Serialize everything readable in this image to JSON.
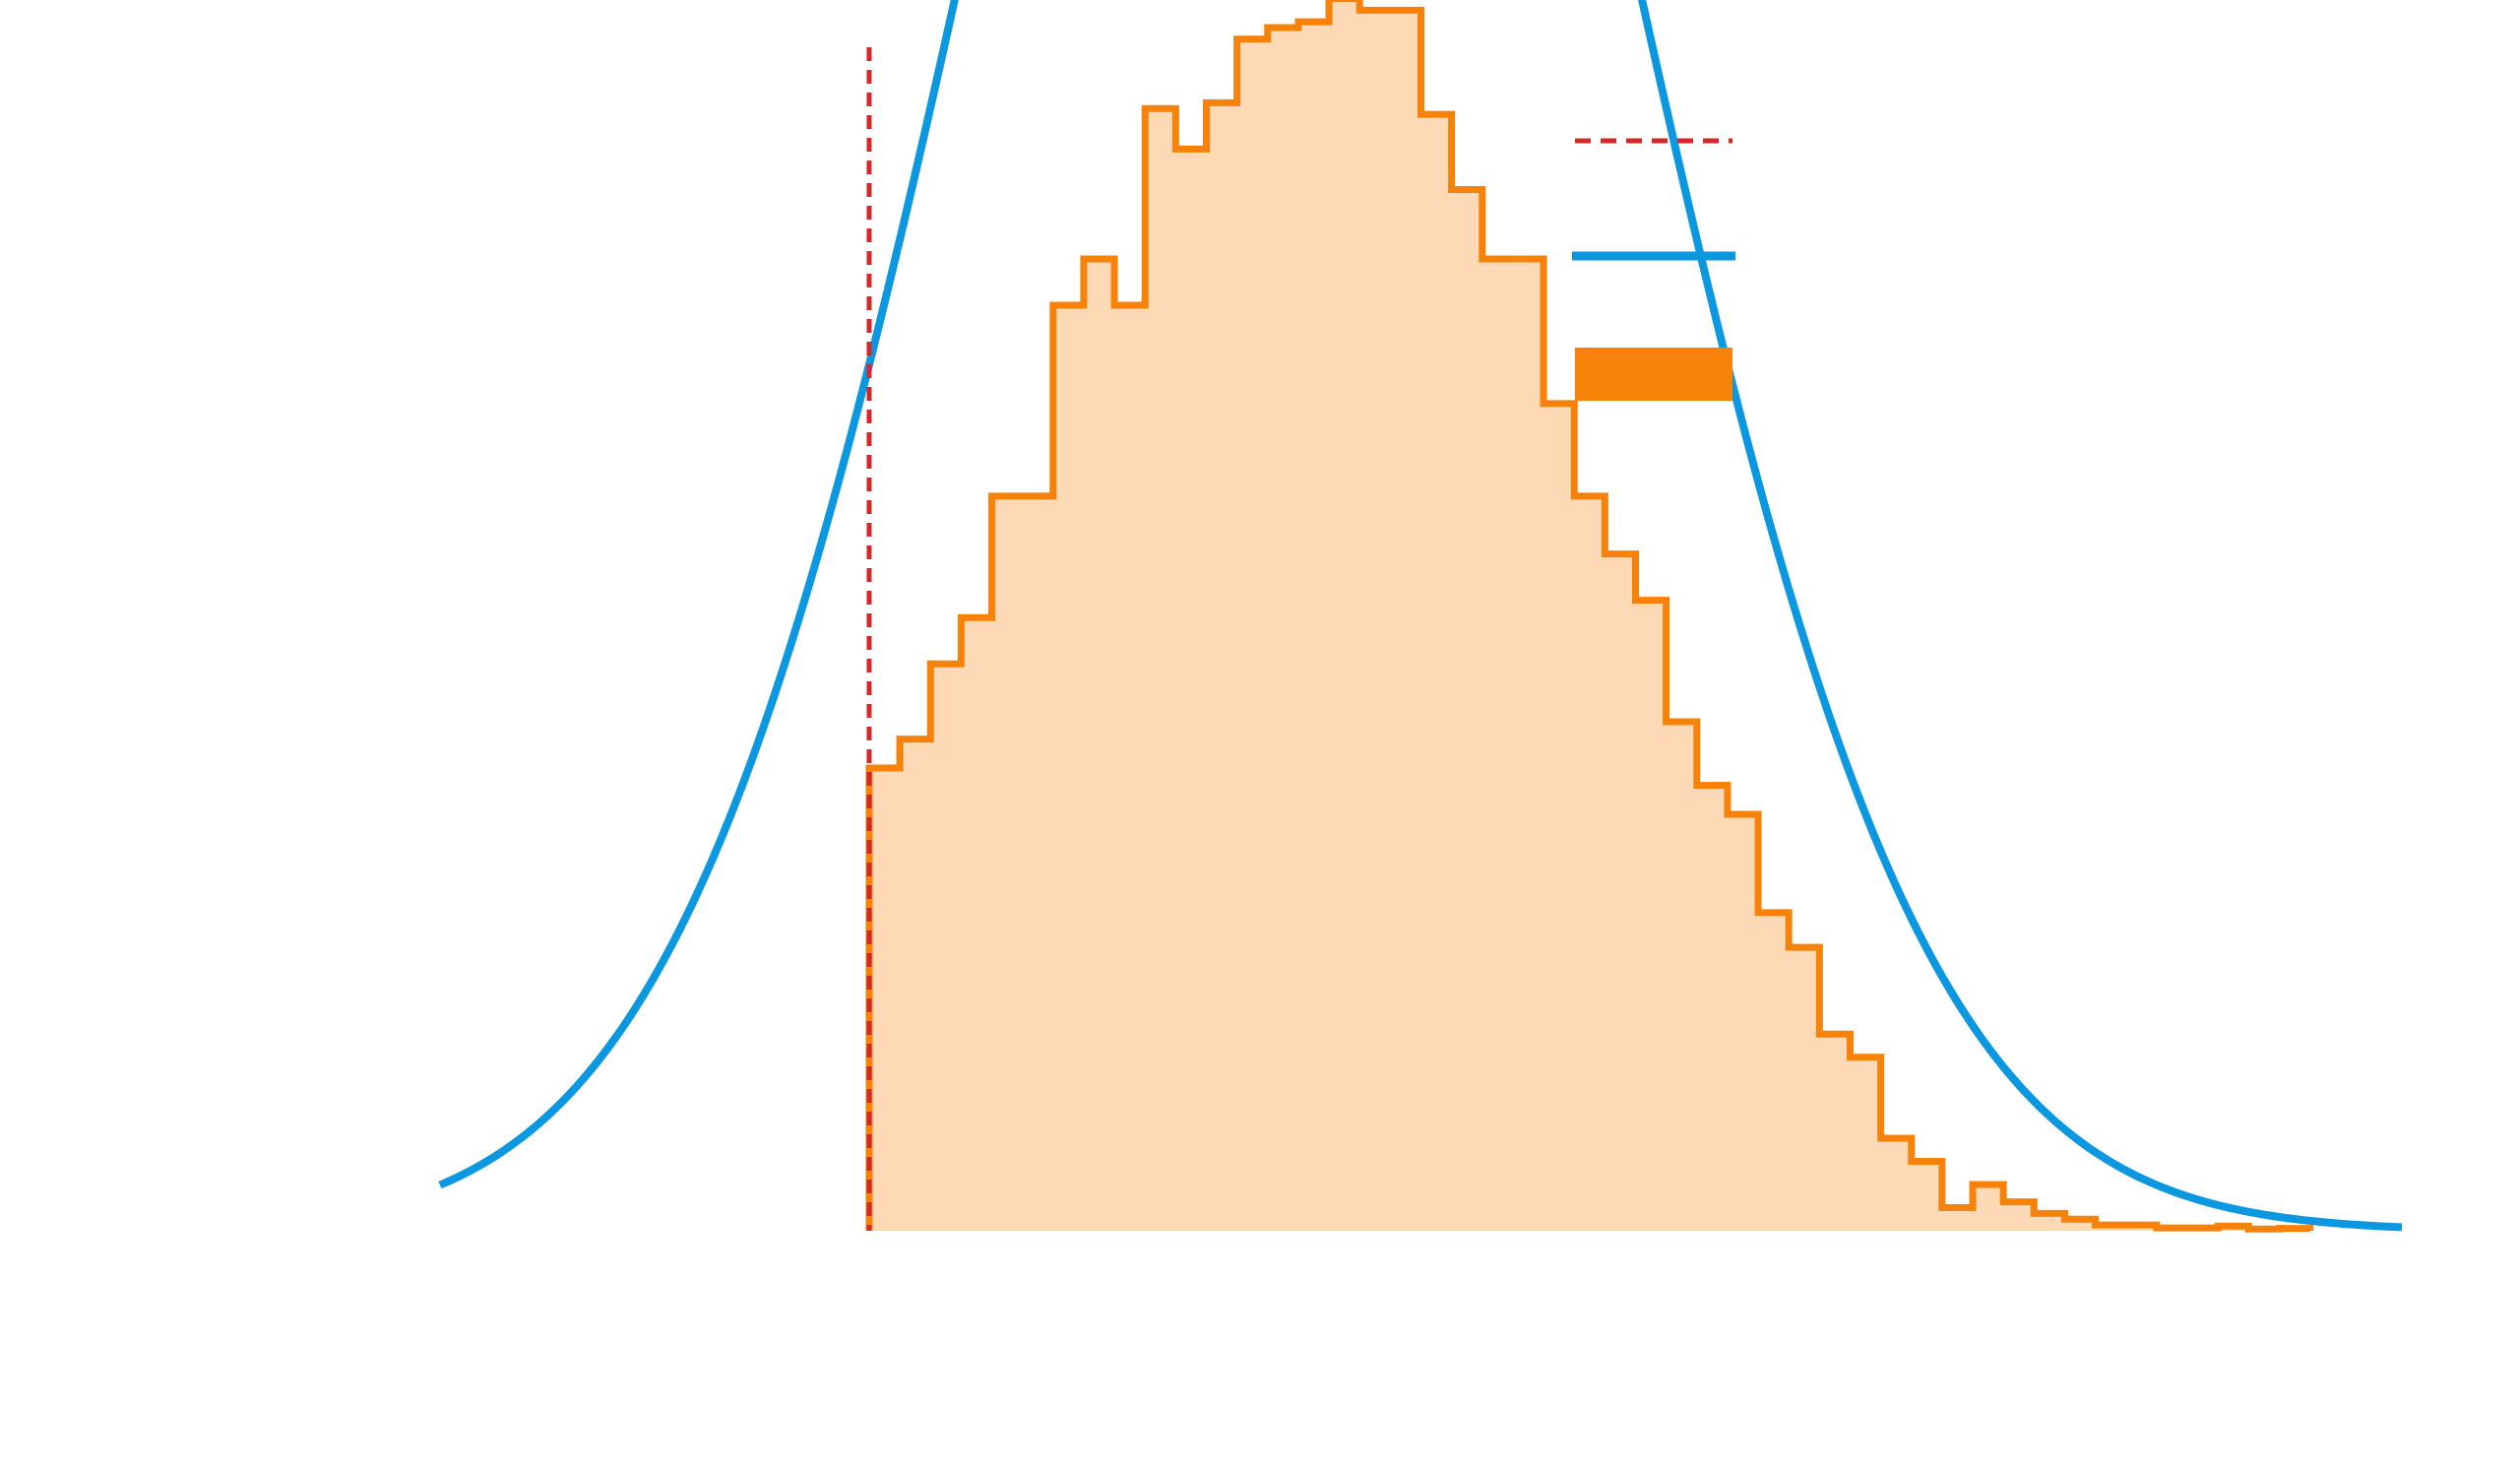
{
  "chart_data": {
    "type": "bar",
    "title": "",
    "xlabel": "",
    "ylabel": "",
    "grid": false,
    "axes_visible": false,
    "legend_position": "top-right",
    "xlim": [
      -1.4,
      5.0
    ],
    "ylim": [
      0,
      0.2
    ],
    "threshold": {
      "x": 0.0,
      "color": "#d62728",
      "style": "dashed"
    },
    "histogram": {
      "color": "#f7820a",
      "fill": "#fdd9b5",
      "bin_edges": [
        0.0,
        0.1,
        0.2,
        0.3,
        0.4,
        0.5,
        0.6,
        0.7,
        0.8,
        0.9,
        1.0,
        1.1,
        1.2,
        1.3,
        1.4,
        1.5,
        1.6,
        1.7,
        1.8,
        1.9,
        2.0,
        2.1,
        2.2,
        2.3,
        2.4,
        2.5,
        2.6,
        2.7,
        2.8,
        2.9,
        3.0,
        3.1,
        3.2,
        3.3,
        3.4,
        3.5,
        3.6,
        3.7,
        3.8,
        3.9,
        4.0,
        4.1,
        4.2,
        4.3,
        4.4,
        4.5,
        4.6,
        4.7
      ],
      "counts": [
        0.08,
        0.085,
        0.098,
        0.106,
        0.127,
        0.127,
        0.16,
        0.168,
        0.16,
        0.194,
        0.187,
        0.195,
        0.206,
        0.208,
        0.209,
        0.213,
        0.211,
        0.211,
        0.193,
        0.18,
        0.168,
        0.168,
        0.143,
        0.127,
        0.117,
        0.109,
        0.088,
        0.077,
        0.072,
        0.055,
        0.049,
        0.034,
        0.03,
        0.016,
        0.012,
        0.004,
        0.008,
        0.005,
        0.003,
        0.002,
        0.001,
        0.001,
        0.0005,
        0.0005,
        0.0008,
        0.0003,
        0.0004
      ]
    },
    "curve": {
      "type": "normal_pdf",
      "mean": 1.4,
      "sd": 1.0,
      "x_range": [
        -1.4,
        5.0
      ],
      "color": "#0b98e0"
    },
    "legend": [
      {
        "kind": "dashed-line",
        "color": "#d62728",
        "label": ""
      },
      {
        "kind": "line",
        "color": "#0b98e0",
        "label": ""
      },
      {
        "kind": "patch",
        "color": "#f7820a",
        "label": ""
      }
    ]
  }
}
